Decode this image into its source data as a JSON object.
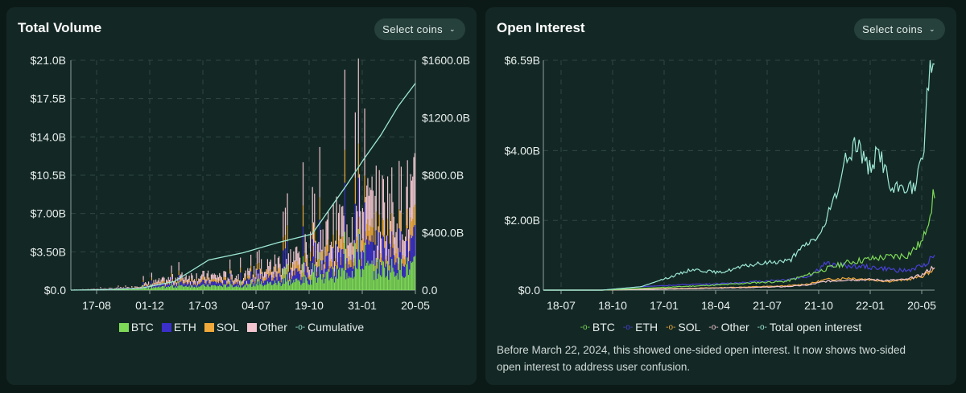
{
  "panels": {
    "volume": {
      "title": "Total Volume",
      "select_label": "Select coins",
      "legend": [
        {
          "label": "BTC",
          "color": "#7ed957",
          "marker": "square"
        },
        {
          "label": "ETH",
          "color": "#3b2fc9",
          "marker": "square"
        },
        {
          "label": "SOL",
          "color": "#f2a93b",
          "marker": "square"
        },
        {
          "label": "Other",
          "color": "#f4c6d0",
          "marker": "square"
        },
        {
          "label": "Cumulative",
          "color": "#9ee8d6",
          "marker": "circle"
        }
      ]
    },
    "oi": {
      "title": "Open Interest",
      "select_label": "Select coins",
      "legend": [
        {
          "label": "BTC",
          "color": "#7ed957",
          "marker": "circle"
        },
        {
          "label": "ETH",
          "color": "#4a3fd8",
          "marker": "circle"
        },
        {
          "label": "SOL",
          "color": "#f2a93b",
          "marker": "circle"
        },
        {
          "label": "Other",
          "color": "#f4c6d0",
          "marker": "circle"
        },
        {
          "label": "Total open interest",
          "color": "#9ee8d6",
          "marker": "circle"
        }
      ],
      "note": "Before March 22, 2024, this showed one-sided open interest. It now shows two-sided open interest to address user confusion."
    }
  },
  "chart_data": [
    {
      "type": "bar",
      "title": "Total Volume",
      "stacked": true,
      "x_ticks": [
        "17-08",
        "01-12",
        "17-03",
        "04-07",
        "19-10",
        "31-01",
        "20-05"
      ],
      "y_ticks_left": [
        "$0.0",
        "$3.50B",
        "$7.00B",
        "$10.5B",
        "$14.0B",
        "$17.5B",
        "$21.0B"
      ],
      "y_ticks_right": [
        "0.0",
        "$400.0B",
        "$800.0B",
        "$1200.0B",
        "$1600.0B"
      ],
      "ylim_left": [
        0,
        21
      ],
      "ylim_right": [
        0,
        1600
      ],
      "y_unit": "billions USD",
      "grid": true,
      "legend_position": "bottom",
      "categories": [
        "17-08",
        "01-12",
        "17-03",
        "04-07",
        "19-10",
        "31-01",
        "20-05"
      ],
      "series": [
        {
          "name": "BTC",
          "color": "#7ed957",
          "values": [
            0.02,
            0.1,
            0.4,
            0.4,
            0.8,
            1.8,
            2.0
          ]
        },
        {
          "name": "ETH",
          "color": "#3b2fc9",
          "values": [
            0.01,
            0.05,
            0.3,
            0.3,
            0.7,
            1.5,
            1.8
          ]
        },
        {
          "name": "SOL",
          "color": "#f2a93b",
          "values": [
            0.0,
            0.03,
            0.2,
            0.2,
            0.5,
            1.0,
            1.2
          ]
        },
        {
          "name": "Other",
          "color": "#f4c6d0",
          "values": [
            0.0,
            0.05,
            0.4,
            0.4,
            1.0,
            2.5,
            3.0
          ]
        }
      ],
      "cumulative": {
        "name": "Cumulative",
        "color": "#9ee8d6",
        "axis": "right",
        "x": [
          0,
          0.1,
          0.2,
          0.3,
          0.4,
          0.5,
          0.6,
          0.7,
          0.75,
          0.8,
          0.85,
          0.9,
          0.95,
          1.0
        ],
        "values": [
          0,
          3,
          12,
          60,
          210,
          260,
          330,
          390,
          560,
          730,
          910,
          1080,
          1280,
          1440
        ]
      }
    },
    {
      "type": "line",
      "title": "Open Interest",
      "x_ticks": [
        "18-07",
        "18-10",
        "17-01",
        "18-04",
        "21-07",
        "21-10",
        "22-01",
        "20-05"
      ],
      "y_ticks": [
        "$0.0",
        "$2.00B",
        "$4.00B",
        "$6.59B"
      ],
      "ylim": [
        0,
        6.59
      ],
      "y_unit": "billions USD",
      "grid": true,
      "legend_position": "bottom",
      "series": [
        {
          "name": "BTC",
          "color": "#7ed957",
          "x": [
            0,
            0.15,
            0.25,
            0.35,
            0.45,
            0.55,
            0.62,
            0.68,
            0.72,
            0.78,
            0.84,
            0.88,
            0.93,
            0.97,
            1.0
          ],
          "values": [
            0,
            0.0,
            0.05,
            0.1,
            0.15,
            0.22,
            0.25,
            0.45,
            0.6,
            0.8,
            0.9,
            0.95,
            1.0,
            1.4,
            2.8
          ]
        },
        {
          "name": "ETH",
          "color": "#4a3fd8",
          "x": [
            0,
            0.15,
            0.25,
            0.35,
            0.45,
            0.55,
            0.62,
            0.68,
            0.72,
            0.78,
            0.84,
            0.88,
            0.93,
            0.97,
            1.0
          ],
          "values": [
            0,
            0.0,
            0.1,
            0.15,
            0.18,
            0.25,
            0.3,
            0.4,
            0.75,
            0.7,
            0.65,
            0.6,
            0.55,
            0.7,
            1.0
          ]
        },
        {
          "name": "SOL",
          "color": "#f2a93b",
          "x": [
            0,
            0.15,
            0.25,
            0.35,
            0.45,
            0.55,
            0.62,
            0.68,
            0.72,
            0.78,
            0.84,
            0.88,
            0.93,
            0.97,
            1.0
          ],
          "values": [
            0,
            0.0,
            0.03,
            0.05,
            0.07,
            0.1,
            0.12,
            0.18,
            0.3,
            0.35,
            0.3,
            0.25,
            0.3,
            0.4,
            0.6
          ]
        },
        {
          "name": "Other",
          "color": "#f4c6d0",
          "x": [
            0,
            0.15,
            0.25,
            0.35,
            0.45,
            0.55,
            0.62,
            0.68,
            0.72,
            0.78,
            0.84,
            0.88,
            0.93,
            0.97,
            1.0
          ],
          "values": [
            0,
            0.0,
            0.02,
            0.04,
            0.06,
            0.08,
            0.1,
            0.15,
            0.25,
            0.3,
            0.3,
            0.28,
            0.3,
            0.45,
            0.7
          ]
        },
        {
          "name": "Total open interest",
          "color": "#9ee8d6",
          "x": [
            0,
            0.15,
            0.25,
            0.33,
            0.38,
            0.45,
            0.52,
            0.58,
            0.63,
            0.67,
            0.71,
            0.74,
            0.77,
            0.8,
            0.83,
            0.86,
            0.89,
            0.92,
            0.95,
            0.97,
            0.985,
            1.0
          ],
          "values": [
            0,
            0.0,
            0.1,
            0.4,
            0.6,
            0.5,
            0.7,
            0.8,
            0.85,
            1.3,
            1.6,
            2.5,
            3.6,
            4.3,
            3.5,
            4.0,
            2.8,
            3.0,
            2.9,
            3.8,
            6.2,
            6.59
          ]
        }
      ]
    }
  ]
}
